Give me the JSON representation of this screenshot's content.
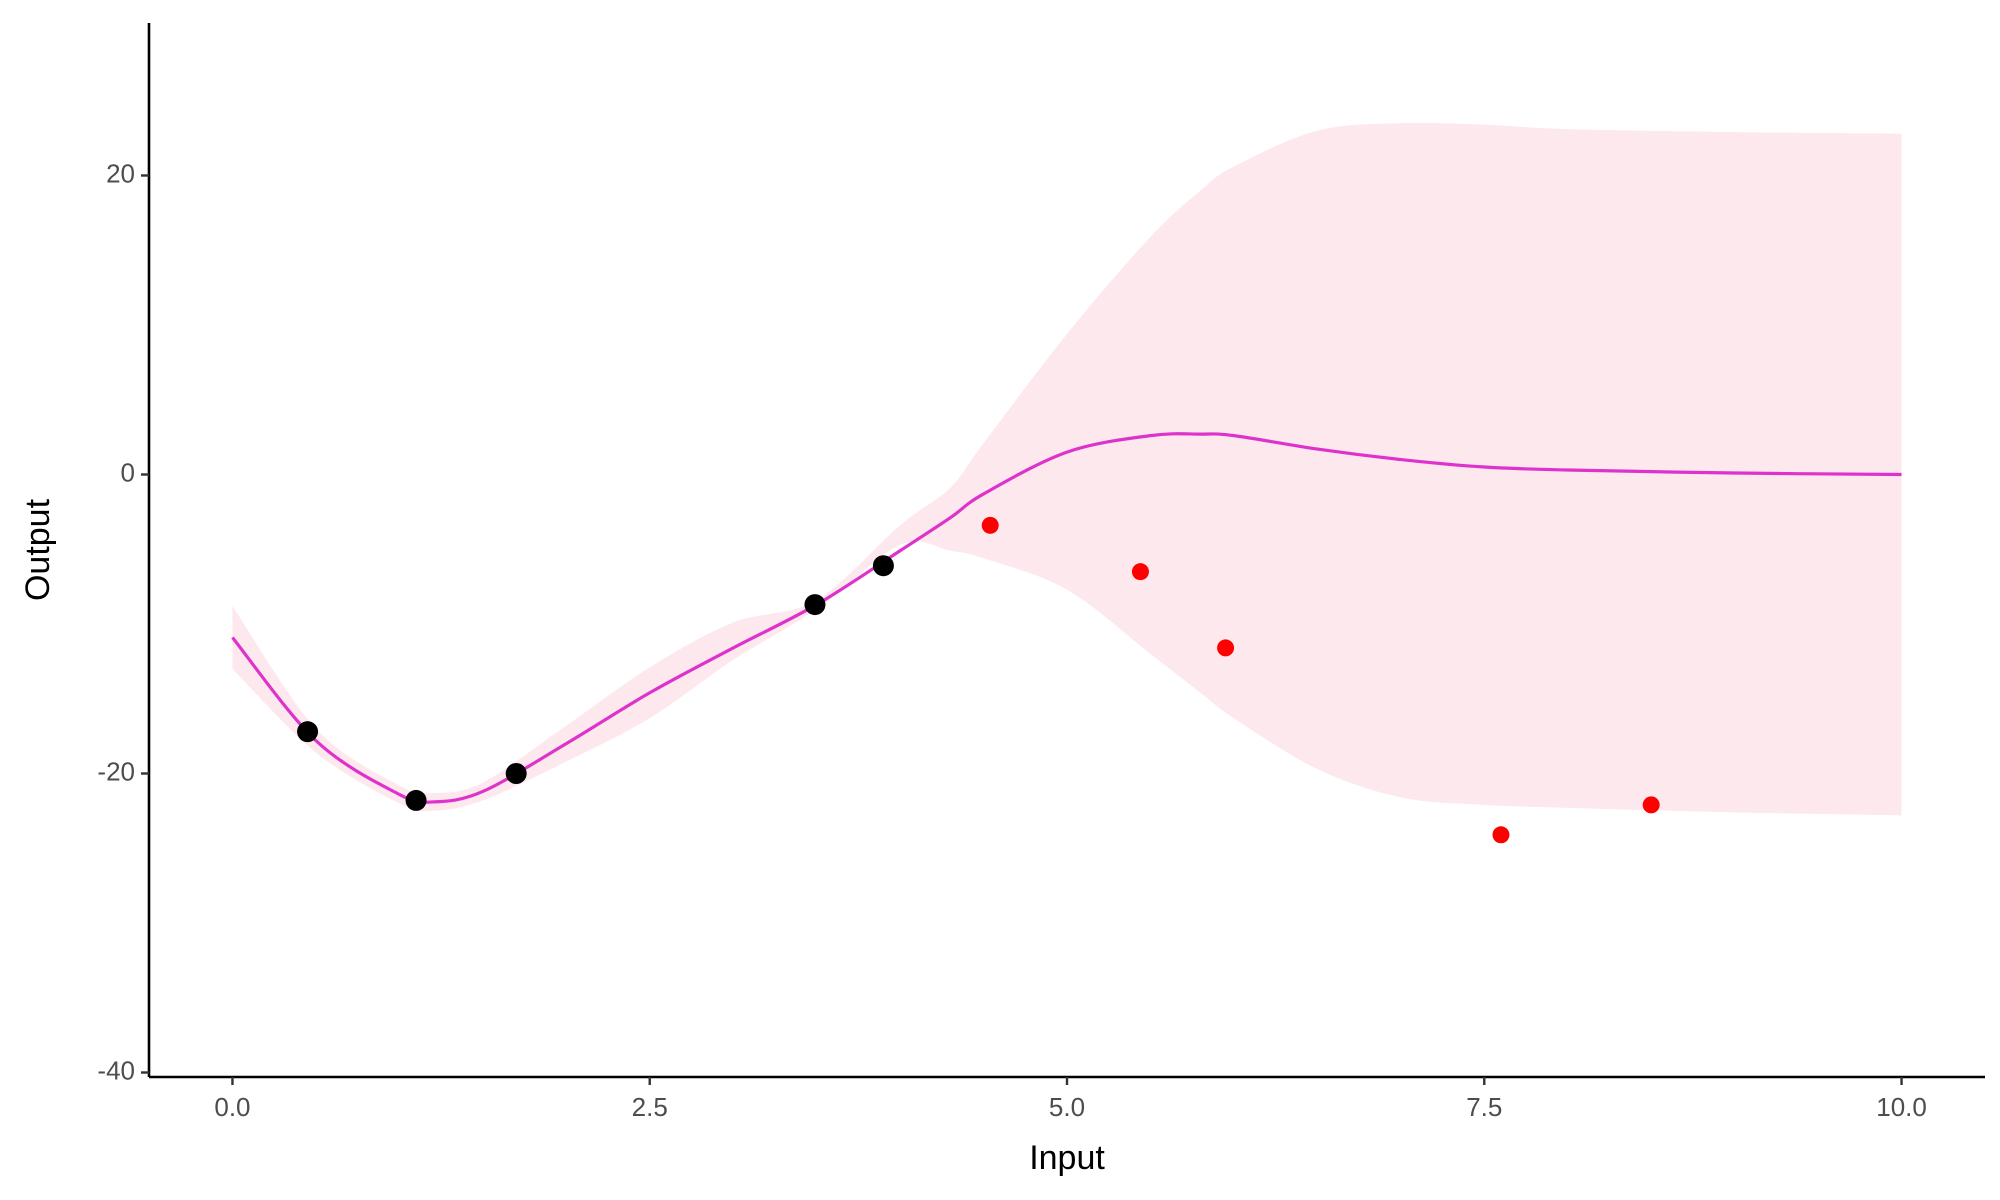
{
  "chart_data": {
    "type": "line",
    "x_label": "Input",
    "y_label": "Output",
    "xlim": [
      -0.5,
      10.5
    ],
    "ylim": [
      -40.3,
      30.2
    ],
    "xticks": [
      {
        "value": 0,
        "label": "0.0"
      },
      {
        "value": 2.5,
        "label": "2.5"
      },
      {
        "value": 5,
        "label": "5.0"
      },
      {
        "value": 7.5,
        "label": "7.5"
      },
      {
        "value": 10,
        "label": "10.0"
      }
    ],
    "yticks": [
      -40,
      -20,
      0,
      20
    ],
    "x": [
      0,
      0.5,
      1,
      1.2,
      1.5,
      2,
      2.5,
      3,
      3.5,
      4,
      4.3,
      4.5,
      5,
      5.5,
      5.8,
      6,
      6.5,
      7,
      7.5,
      8,
      9,
      10
    ],
    "band": {
      "color": "#fde8ed",
      "upper": [
        -8.8,
        -17.0,
        -20.8,
        -21.3,
        -20.6,
        -16.8,
        -12.9,
        -9.9,
        -8.4,
        -3.4,
        -0.9,
        2.1,
        9.4,
        15.9,
        19.0,
        20.6,
        23.0,
        23.5,
        23.4,
        23.1,
        22.9,
        22.8
      ],
      "lower": [
        -13.0,
        -18.6,
        -22.0,
        -22.5,
        -21.8,
        -19.2,
        -16.3,
        -12.4,
        -9.0,
        -4.7,
        -5.1,
        -5.6,
        -7.7,
        -12.0,
        -14.6,
        -16.3,
        -19.7,
        -21.6,
        -22.1,
        -22.3,
        -22.6,
        -22.8
      ]
    },
    "series": [
      {
        "color": "#dd33cc",
        "values": [
          -10.9,
          -17.8,
          -21.4,
          -21.9,
          -21.2,
          -18.0,
          -14.6,
          -11.6,
          -8.7,
          -5.1,
          -2.9,
          -1.3,
          1.5,
          2.6,
          2.7,
          2.6,
          1.7,
          1.0,
          0.5,
          0.3,
          0.1,
          0
        ]
      }
    ],
    "points": [
      {
        "color": "#000000",
        "x": [
          0.45,
          1.1,
          1.7,
          3.49,
          3.9
        ],
        "values": [
          -17.2,
          -21.8,
          -20.0,
          -8.7,
          -6.1
        ]
      },
      {
        "color": "#ff0000",
        "x": [
          4.54,
          5.44,
          5.95,
          7.6,
          8.5
        ],
        "values": [
          -3.4,
          -6.5,
          -11.6,
          -24.1,
          -22.1
        ]
      }
    ]
  }
}
